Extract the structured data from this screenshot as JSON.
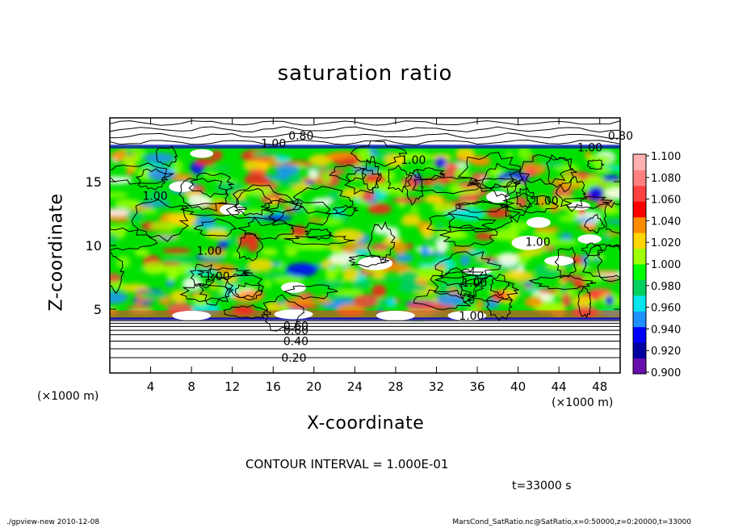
{
  "chart_data": {
    "type": "heatmap",
    "title": "saturation ratio",
    "xlabel": "X-coordinate",
    "ylabel": "Z-coordinate",
    "x_unit_label": "(×1000 m)",
    "x_ticks": [
      4,
      8,
      12,
      16,
      20,
      24,
      28,
      32,
      36,
      40,
      44,
      48
    ],
    "y_ticks": [
      5,
      10,
      15
    ],
    "xlim": [
      0,
      50
    ],
    "ylim": [
      0,
      20
    ],
    "colorbar": {
      "ticks": [
        "1.100",
        "1.080",
        "1.060",
        "1.040",
        "1.020",
        "1.000",
        "0.980",
        "0.960",
        "0.940",
        "0.920",
        "0.900"
      ],
      "range": [
        0.9,
        1.1
      ],
      "colors": [
        "#6a0dad",
        "#0000a0",
        "#0000ff",
        "#1e90ff",
        "#00e5ee",
        "#00d060",
        "#00ff00",
        "#a0ff00",
        "#ffd700",
        "#ff8c00",
        "#ff0000",
        "#ff4040",
        "#ff8080",
        "#ffb0b0"
      ]
    },
    "contour_labels": [
      "0.20",
      "0.40",
      "0.60",
      "0.80",
      "1.00"
    ],
    "contour_interval_text": "CONTOUR INTERVAL = 1.000E-01",
    "time_text": "t=33000 s"
  },
  "footer": {
    "left": "./gpview-new  2010-12-08",
    "right": "MarsCond_SatRatio.nc@SatRatio,x=0:50000,z=0:20000,t=33000"
  }
}
